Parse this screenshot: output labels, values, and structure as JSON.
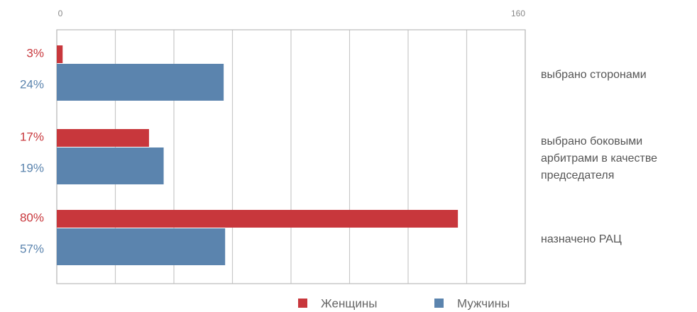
{
  "chart_data": {
    "type": "barh",
    "categories": [
      "выбрано сторонами",
      "выбрано боковыми арбитрами в качестве председателя",
      "назначено РАЦ"
    ],
    "series": [
      {
        "name": "Женщины",
        "color": "#c8373c",
        "values": [
          2,
          31.5,
          137
        ],
        "share_labels": [
          "3%",
          "17%",
          "80%"
        ]
      },
      {
        "name": "Мужчины",
        "color": "#5b84ae",
        "values": [
          57,
          36.5,
          57.5
        ],
        "share_labels": [
          "24%",
          "19%",
          "57%"
        ]
      }
    ],
    "xlim": [
      0,
      160
    ],
    "xticks": [
      0,
      160
    ],
    "gridlines": [
      0,
      20,
      40,
      60,
      80,
      100,
      120,
      140,
      160
    ],
    "grid": true
  }
}
